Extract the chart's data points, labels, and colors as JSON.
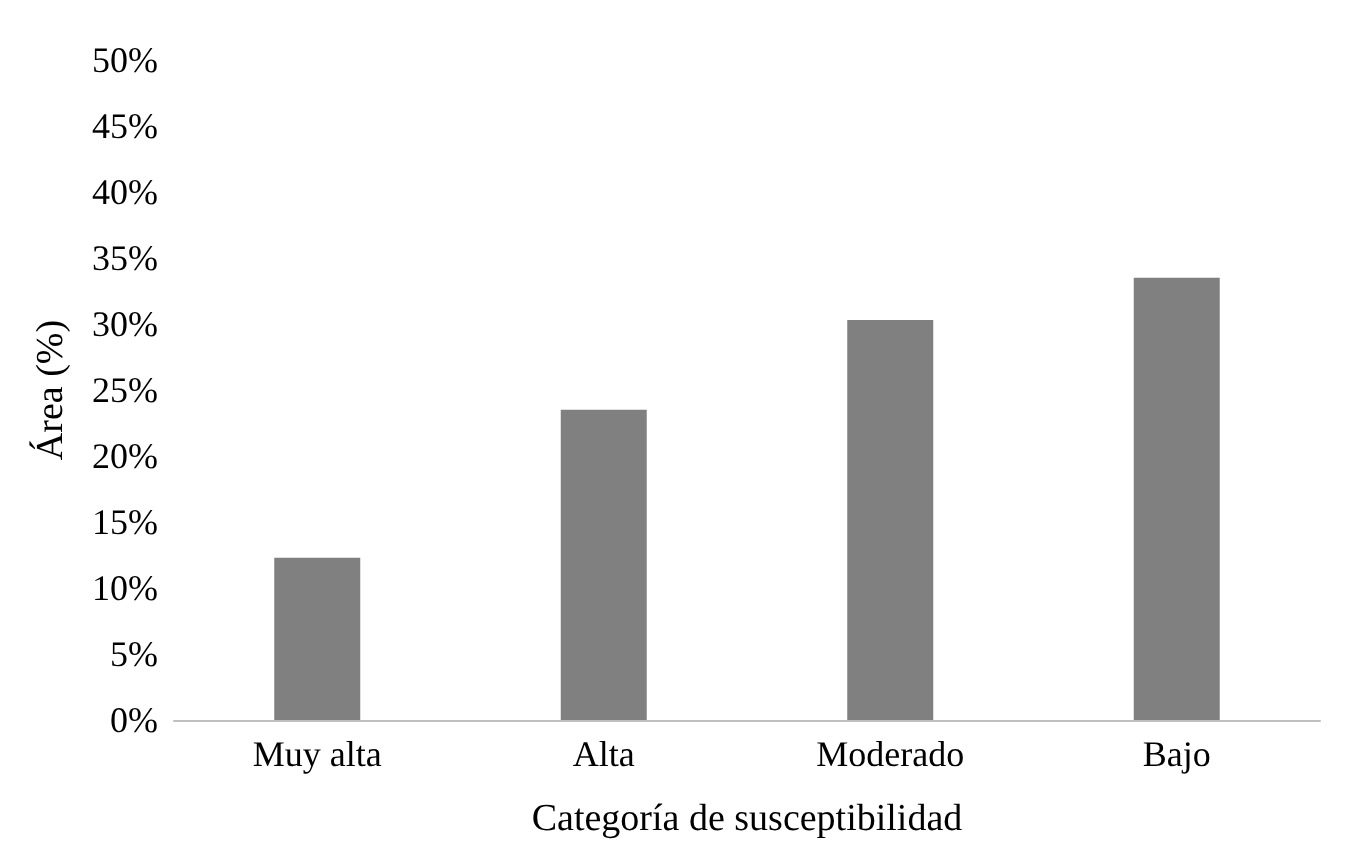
{
  "chart_data": {
    "type": "bar",
    "xlabel": "Categoría de susceptibilidad",
    "ylabel": "Área (%)",
    "categories": [
      "Muy alta",
      "Alta",
      "Moderado",
      "Bajo"
    ],
    "values": [
      12.3,
      23.5,
      30.3,
      33.5
    ],
    "color": "#808080",
    "ylim": [
      0,
      50
    ],
    "yticks": [
      {
        "value": 0,
        "label": "0%"
      },
      {
        "value": 5,
        "label": "5%"
      },
      {
        "value": 10,
        "label": "10%"
      },
      {
        "value": 15,
        "label": "15%"
      },
      {
        "value": 20,
        "label": "20%"
      },
      {
        "value": 25,
        "label": "25%"
      },
      {
        "value": 30,
        "label": "30%"
      },
      {
        "value": 35,
        "label": "35%"
      },
      {
        "value": 40,
        "label": "40%"
      },
      {
        "value": 45,
        "label": "45%"
      },
      {
        "value": 50,
        "label": "50%"
      }
    ],
    "grid": false
  }
}
